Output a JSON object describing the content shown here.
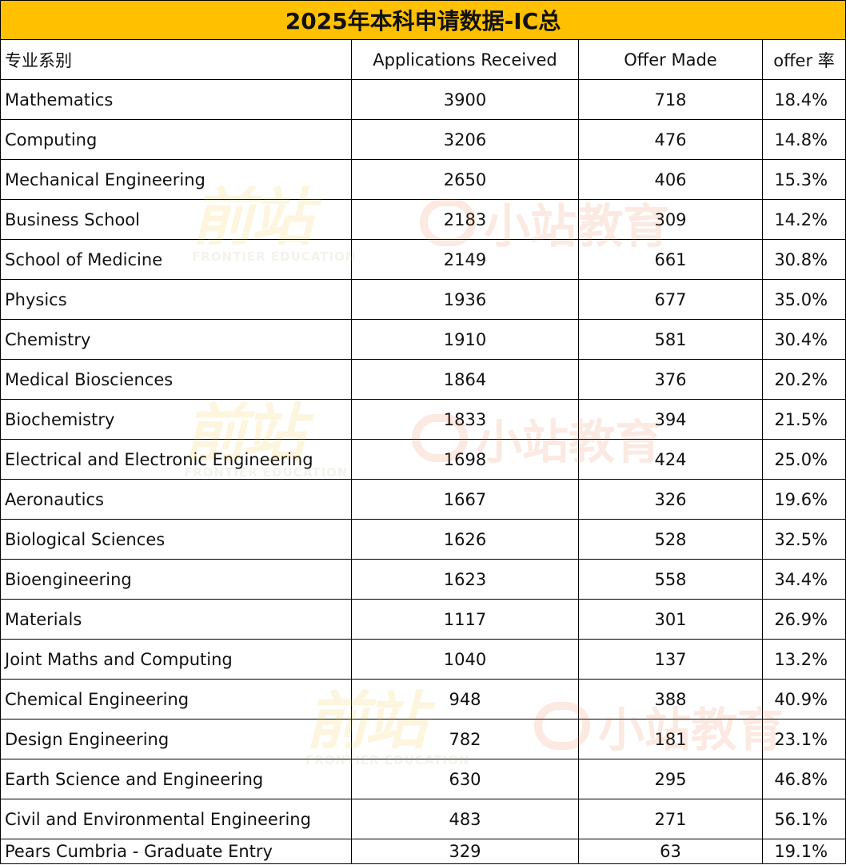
{
  "title": "2025年本科申请数据-IC总",
  "headers": [
    "专业系别",
    "Applications Received",
    "Offer Made",
    "offer 率"
  ],
  "rows": [
    [
      "Mathematics",
      "3900",
      "718",
      "18.4%"
    ],
    [
      "Computing",
      "3206",
      "476",
      "14.8%"
    ],
    [
      "Mechanical Engineering",
      "2650",
      "406",
      "15.3%"
    ],
    [
      "Business School",
      "2183",
      "309",
      "14.2%"
    ],
    [
      "School of Medicine",
      "2149",
      "661",
      "30.8%"
    ],
    [
      "Physics",
      "1936",
      "677",
      "35.0%"
    ],
    [
      "Chemistry",
      "1910",
      "581",
      "30.4%"
    ],
    [
      "Medical Biosciences",
      "1864",
      "376",
      "20.2%"
    ],
    [
      "Biochemistry",
      "1833",
      "394",
      "21.5%"
    ],
    [
      "Electrical and Electronic Engineering",
      "1698",
      "424",
      "25.0%"
    ],
    [
      "Aeronautics",
      "1667",
      "326",
      "19.6%"
    ],
    [
      "Biological Sciences",
      "1626",
      "528",
      "32.5%"
    ],
    [
      "Bioengineering",
      "1623",
      "558",
      "34.4%"
    ],
    [
      "Materials",
      "1117",
      "301",
      "26.9%"
    ],
    [
      "Joint Maths and Computing",
      "1040",
      "137",
      "13.2%"
    ],
    [
      "Chemical Engineering",
      "948",
      "388",
      "40.9%"
    ],
    [
      "Design Engineering",
      "782",
      "181",
      "23.1%"
    ],
    [
      "Earth Science and Engineering",
      "630",
      "295",
      "46.8%"
    ],
    [
      "Civil and Environmental Engineering",
      "483",
      "271",
      "56.1%"
    ],
    [
      "Pears Cumbria - Graduate Entry",
      "329",
      "63",
      "19.1%"
    ]
  ],
  "watermarks": {
    "brand_a": "前站",
    "brand_a_sub": "FRONTIER EDUCATION",
    "brand_b": "小站教育"
  },
  "colors": {
    "title_bg": "#ffc000",
    "grid": "#000000"
  }
}
